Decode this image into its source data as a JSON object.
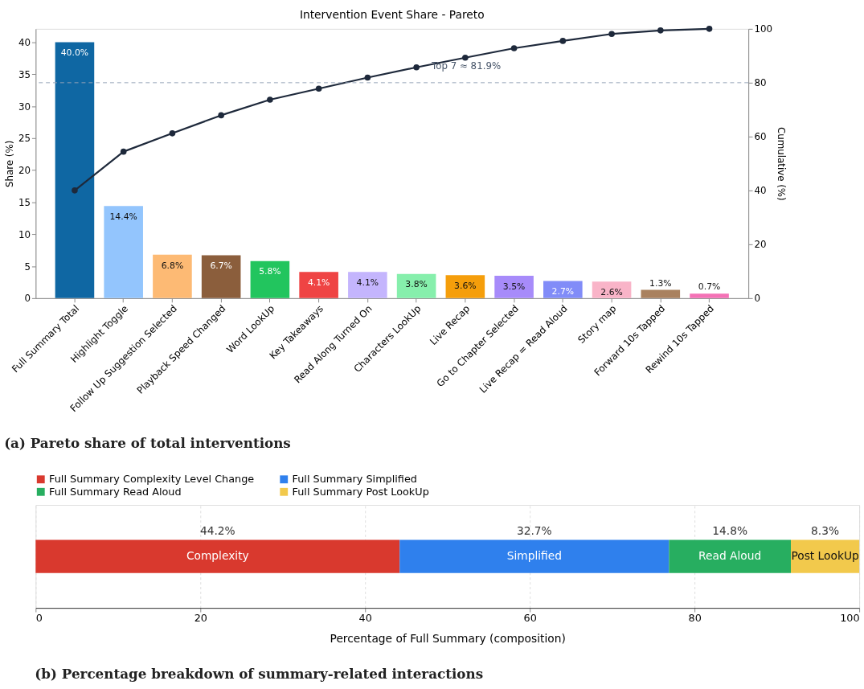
{
  "chart_data": [
    {
      "type": "bar",
      "title": "Intervention Event Share - Pareto",
      "subtitle": "(a) Pareto share of total interventions",
      "ylabel": "Share (%)",
      "y2label": "Cumulative (%)",
      "categories": [
        "Full Summary Total",
        "Highlight Toggle",
        "Follow Up Suggestion Selected",
        "Playback Speed Changed",
        "Word LookUp",
        "Key Takeaways",
        "Read Along Turned On",
        "Characters LookUp",
        "Live Recap",
        "Go to Chapter Selected",
        "Live Recap = Read Aloud",
        "Story map",
        "Forward 10s Tapped",
        "Rewind 10s Tapped"
      ],
      "series": [
        {
          "type": "bar",
          "values": [
            40.0,
            14.4,
            6.8,
            6.7,
            5.8,
            4.1,
            4.1,
            3.8,
            3.6,
            3.5,
            2.7,
            2.6,
            1.3,
            0.7
          ],
          "colors": [
            "#0f67a3",
            "#93c5fd",
            "#fdba74",
            "#8b5e3c",
            "#22c55e",
            "#ef4444",
            "#c4b5fd",
            "#86efac",
            "#f59e0b",
            "#a78bfa",
            "#818cf8",
            "#f9b4c8",
            "#a9815f",
            "#f472b6"
          ],
          "value_labels": [
            "40.0%",
            "14.4%",
            "6.8%",
            "6.7%",
            "5.8%",
            "4.1%",
            "4.1%",
            "3.8%",
            "3.6%",
            "3.5%",
            "2.7%",
            "2.6%",
            "1.3%",
            "0.7%"
          ]
        },
        {
          "type": "line",
          "axis": "y2",
          "color": "#1e293b",
          "values": [
            40.0,
            54.4,
            61.2,
            67.9,
            73.7,
            77.8,
            81.9,
            85.7,
            89.3,
            92.8,
            95.5,
            98.1,
            99.4,
            100.0
          ]
        }
      ],
      "ylim": [
        0,
        42.1
      ],
      "yticks": [
        0,
        5,
        10,
        15,
        20,
        25,
        30,
        35,
        40
      ],
      "y2lim": [
        0,
        100
      ],
      "y2ticks": [
        0,
        20,
        40,
        60,
        80,
        100
      ],
      "ref_lines": [
        {
          "axis": "y2",
          "value": 80,
          "color": "#94a3b8",
          "line_style": "dashed"
        }
      ],
      "annotations": [
        "Top 7 ≈ 81.9%"
      ],
      "marker": "circle",
      "grid": false,
      "legend": false
    },
    {
      "type": "bar",
      "orientation": "horizontal",
      "stacked": true,
      "subtitle": "(b) Percentage breakdown of summary-related interactions",
      "xlabel": "Percentage of Full Summary (composition)",
      "categories": [
        null
      ],
      "series": [
        {
          "name": "Full Summary Complexity Level Change",
          "color": "#d9392e",
          "values": [
            44.2
          ],
          "value_labels": [
            "44.2%"
          ]
        },
        {
          "name": "Full Summary Simplified",
          "color": "#2f80ed",
          "values": [
            32.7
          ],
          "value_labels": [
            "32.7%"
          ]
        },
        {
          "name": "Full Summary Read Aloud",
          "color": "#27ae60",
          "values": [
            14.8
          ],
          "value_labels": [
            "14.8%"
          ]
        },
        {
          "name": "Full Summary Post LookUp",
          "color": "#f2c94c",
          "values": [
            8.3
          ],
          "value_labels": [
            "8.3%"
          ]
        }
      ],
      "annotations": [
        "Complexity",
        "Simplified",
        "Read Aloud",
        "Post LookUp"
      ],
      "xlim": [
        0,
        100
      ],
      "xticks": [
        0,
        20,
        40,
        60,
        80,
        100
      ],
      "grid": "x",
      "legend": "top"
    }
  ]
}
